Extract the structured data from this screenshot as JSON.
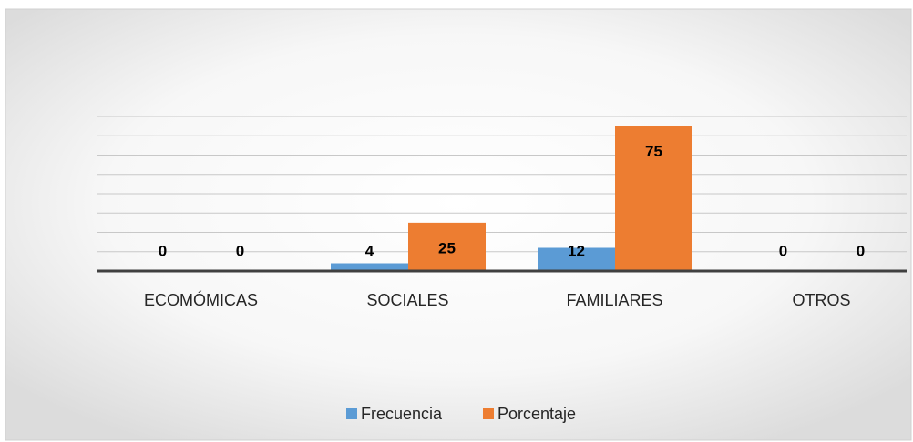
{
  "chart_data": {
    "type": "bar",
    "categories": [
      "ECOMÓMICAS",
      "SOCIALES",
      "FAMILIARES",
      "OTROS"
    ],
    "series": [
      {
        "name": "Frecuencia",
        "color": "#5b9bd5",
        "values": [
          0,
          4,
          12,
          0
        ]
      },
      {
        "name": "Porcentaje",
        "color": "#ed7d31",
        "values": [
          0,
          25,
          75,
          0
        ]
      }
    ],
    "ylim": [
      0,
      80
    ],
    "yticks": [
      0,
      10,
      20,
      30,
      40,
      50,
      60,
      70,
      80
    ],
    "grid": true,
    "legend": "bottom"
  }
}
